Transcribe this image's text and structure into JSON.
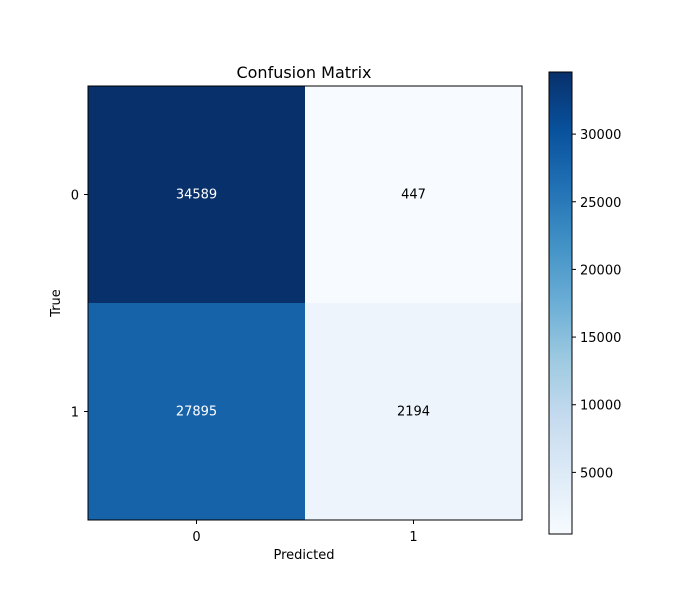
{
  "chart_data": {
    "type": "heatmap",
    "title": "Confusion Matrix",
    "xlabel": "Predicted",
    "ylabel": "True",
    "x_categories": [
      "0",
      "1"
    ],
    "y_categories": [
      "0",
      "1"
    ],
    "values": [
      [
        34589,
        447
      ],
      [
        27895,
        2194
      ]
    ],
    "colormap": "Blues",
    "color_range": [
      447,
      34589
    ],
    "colorbar_ticks": [
      5000,
      10000,
      15000,
      20000,
      25000,
      30000
    ],
    "colorbar_tick_labels": [
      "5000",
      "10000",
      "15000",
      "20000",
      "25000",
      "30000"
    ],
    "grid": false,
    "colorbar_position": "right"
  }
}
